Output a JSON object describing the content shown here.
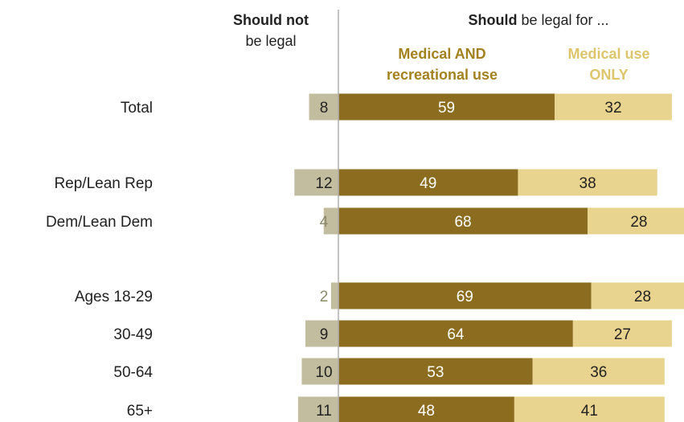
{
  "headers": {
    "not_legal_bold": "Should not",
    "not_legal_rest": "be legal",
    "legal_bold": "Should",
    "legal_rest": "be legal for ...",
    "med_rec_line1": "Medical AND",
    "med_rec_line2": "recreational use",
    "med_only_line1": "Medical use",
    "med_only_line2": "ONLY"
  },
  "colors": {
    "not_legal": "#c2bd9e",
    "med_rec": "#8c6d1f",
    "med_only": "#e8d48e",
    "med_rec_header": "#a3811f",
    "med_only_header": "#dcc56a",
    "divider": "#b0b0b0"
  },
  "chart_data": {
    "type": "bar",
    "stacking": "diverging",
    "categories": [
      "Total",
      "Rep/Lean Rep",
      "Dem/Lean Dem",
      "Ages 18-29",
      "30-49",
      "50-64",
      "65+"
    ],
    "series": [
      {
        "name": "Should not be legal",
        "values": [
          8,
          12,
          4,
          2,
          9,
          10,
          11
        ]
      },
      {
        "name": "Medical AND recreational use",
        "values": [
          59,
          49,
          68,
          69,
          64,
          53,
          48
        ]
      },
      {
        "name": "Medical use ONLY",
        "values": [
          32,
          38,
          28,
          28,
          27,
          36,
          41
        ]
      }
    ]
  }
}
